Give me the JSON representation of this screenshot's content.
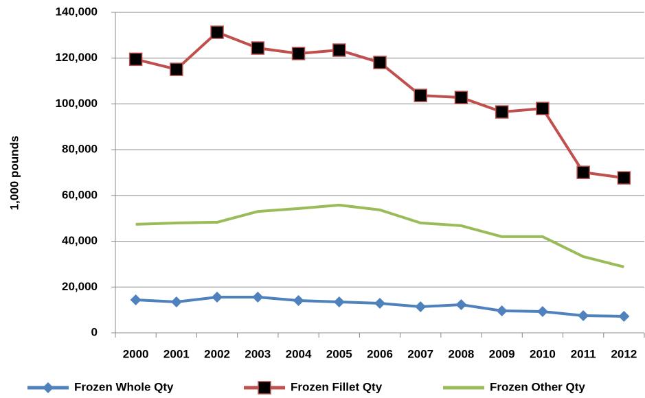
{
  "chart_data": {
    "type": "line",
    "ylabel": "1,000 pounds",
    "categories": [
      "2000",
      "2001",
      "2002",
      "2003",
      "2004",
      "2005",
      "2006",
      "2007",
      "2008",
      "2009",
      "2010",
      "2011",
      "2012"
    ],
    "series": [
      {
        "name": "Frozen Whole Qty",
        "color": "#4f81bd",
        "marker": "diamond",
        "values": [
          14400,
          13500,
          15600,
          15600,
          14100,
          13500,
          12900,
          11400,
          12300,
          9600,
          9300,
          7500,
          7200
        ]
      },
      {
        "name": "Frozen Fillet Qty",
        "color": "#c0504d",
        "marker": "square",
        "values": [
          119500,
          115100,
          131300,
          124400,
          122000,
          123500,
          118100,
          103700,
          102800,
          96500,
          98000,
          70100,
          67700
        ]
      },
      {
        "name": "Frozen Other Qty",
        "color": "#9bbb59",
        "marker": "none",
        "values": [
          47400,
          48000,
          48300,
          53000,
          54300,
          55800,
          53700,
          48000,
          46800,
          42000,
          42000,
          33300,
          28800
        ]
      }
    ],
    "ylim": [
      0,
      140000
    ],
    "yticks": [
      0,
      {
        "value": 20000,
        "label": "20,000"
      },
      {
        "value": 40000,
        "label": "40,000"
      },
      {
        "value": 60000,
        "label": "60,000"
      },
      {
        "value": 80000,
        "label": "80,000"
      },
      {
        "value": 100000,
        "label": "100,000"
      },
      {
        "value": 120000,
        "label": "120,000"
      },
      {
        "value": 140000,
        "label": "140,000"
      }
    ],
    "grid": true,
    "legend": "bottom"
  }
}
